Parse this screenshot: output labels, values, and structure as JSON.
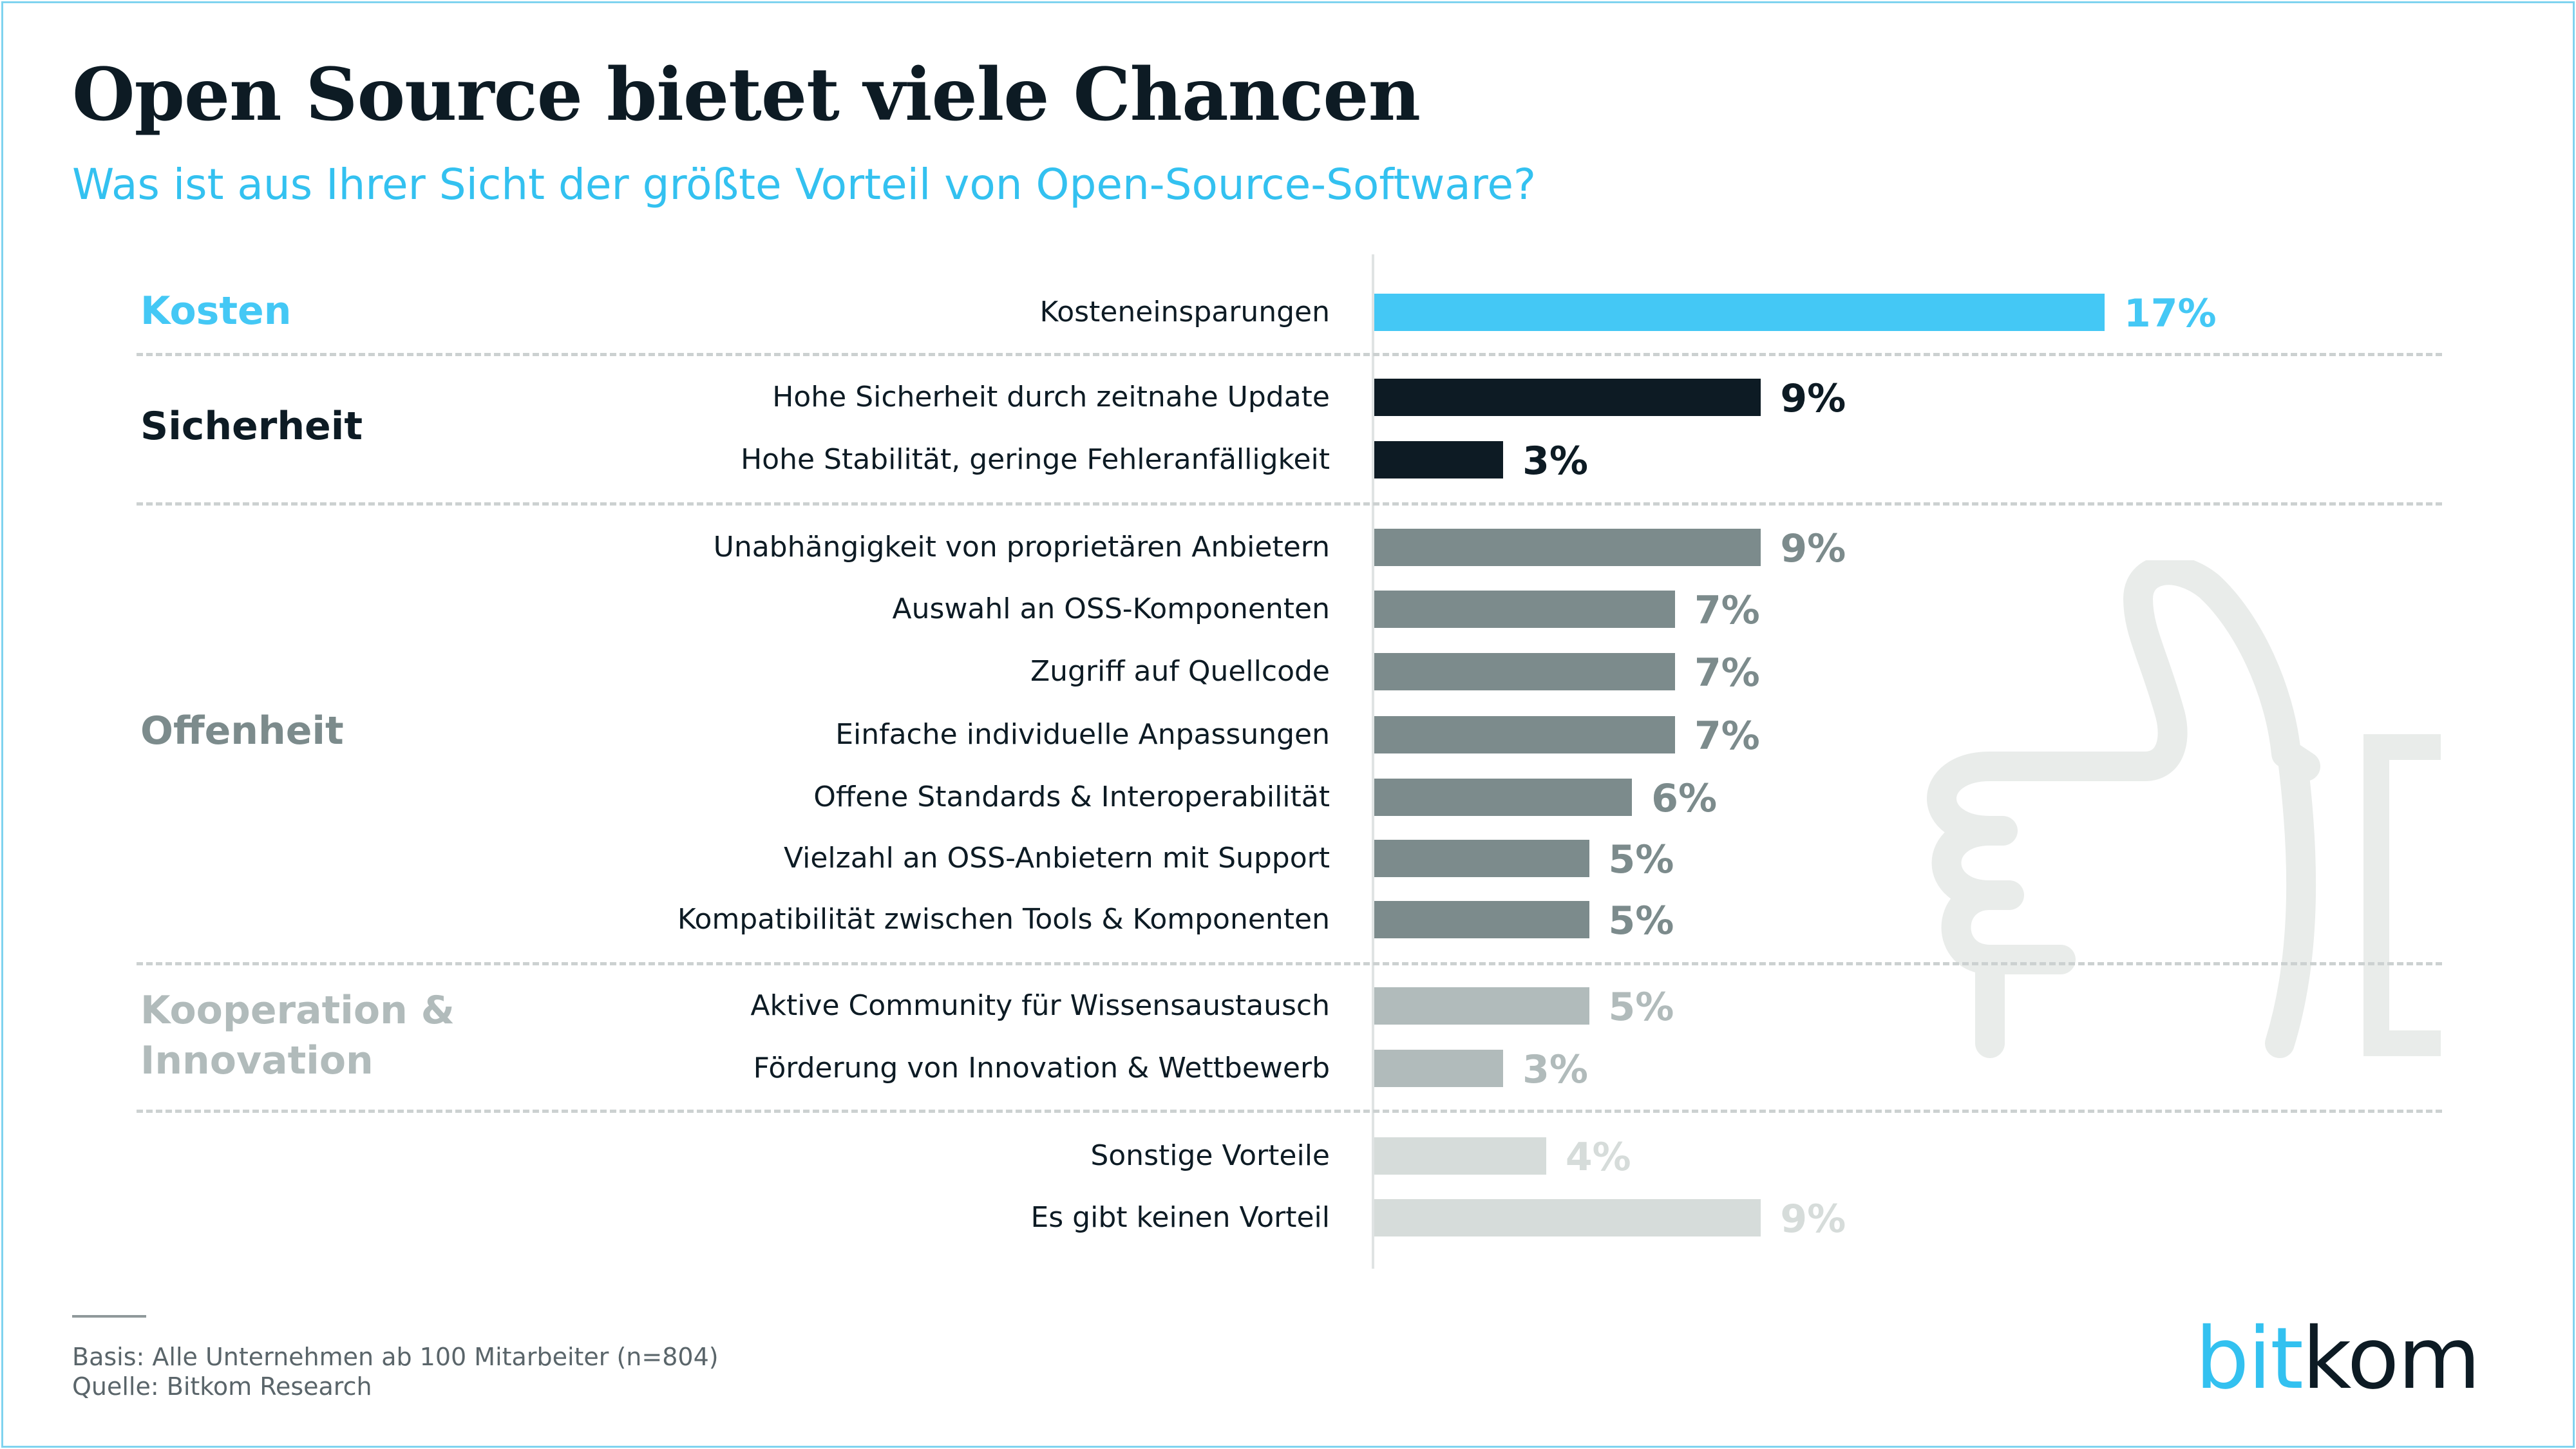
{
  "title": "Open Source bietet viele Chancen",
  "subtitle": "Was ist aus Ihrer Sicht der größte Vorteil von Open-Source-Software?",
  "colors": {
    "kosten": "#44c8f5",
    "sicherheit": "#0d1b24",
    "offenheit": "#7c8b8c",
    "kooperation": "#b1bbbb",
    "sonstige": "#d6dcda"
  },
  "groups": [
    {
      "key": "kosten",
      "label": "Kosten"
    },
    {
      "key": "sicherheit",
      "label": "Sicherheit"
    },
    {
      "key": "offenheit",
      "label": "Offenheit"
    },
    {
      "key": "kooperation",
      "label": "Kooperation & Innovation"
    }
  ],
  "chart_data": {
    "type": "bar",
    "orientation": "horizontal",
    "unit": "%",
    "xlim": [
      0,
      17
    ],
    "categories": [
      "Kosteneinsparungen",
      "Hohe Sicherheit durch zeitnahe Update",
      "Hohe Stabilität, geringe Fehleranfälligkeit",
      "Unabhängigkeit von proprietären Anbietern",
      "Auswahl an OSS-Komponenten",
      "Zugriff auf Quellcode",
      "Einfache individuelle Anpassungen",
      "Offene Standards & Interoperabilität",
      "Vielzahl an OSS-Anbietern mit Support",
      "Kompatibilität zwischen Tools & Komponenten",
      "Aktive Community für Wissensaustausch",
      "Förderung von Innovation & Wettbewerb",
      "Sonstige Vorteile",
      "Es gibt keinen Vorteil"
    ],
    "values": [
      17,
      9,
      3,
      9,
      7,
      7,
      7,
      6,
      5,
      5,
      5,
      3,
      4,
      9
    ],
    "value_labels": [
      "17%",
      "9%",
      "3%",
      "9%",
      "7%",
      "7%",
      "7%",
      "6%",
      "5%",
      "5%",
      "5%",
      "3%",
      "4%",
      "9%"
    ],
    "groups": [
      "kosten",
      "sicherheit",
      "sicherheit",
      "offenheit",
      "offenheit",
      "offenheit",
      "offenheit",
      "offenheit",
      "offenheit",
      "offenheit",
      "kooperation",
      "kooperation",
      "sonstige",
      "sonstige"
    ]
  },
  "footer": {
    "basis": "Basis: Alle Unternehmen ab 100 Mitarbeiter (n=804)",
    "quelle": "Quelle: Bitkom Research"
  },
  "logo": {
    "part1": "bit",
    "part2": "kom"
  }
}
